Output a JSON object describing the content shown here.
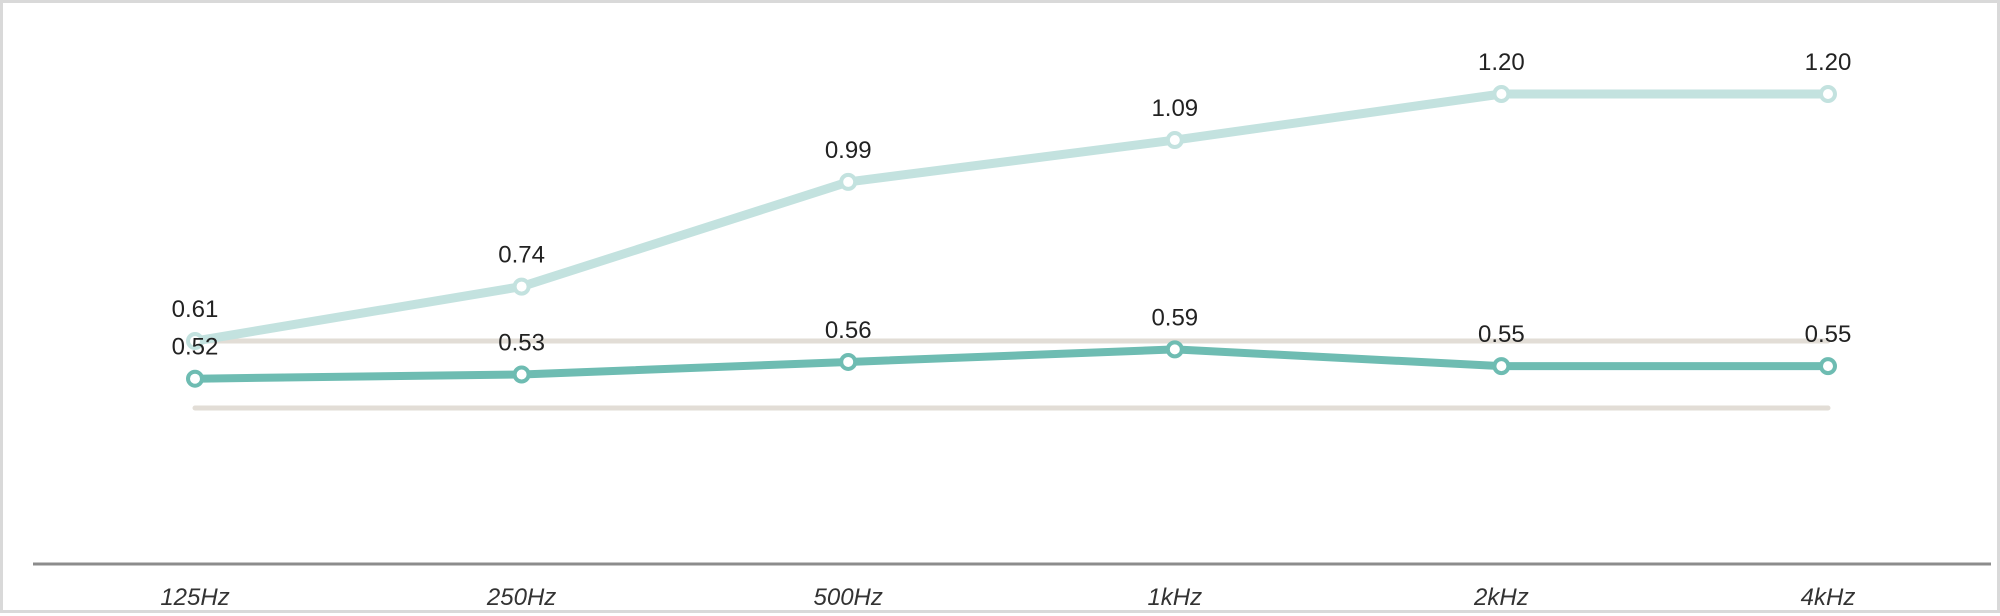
{
  "chart_data": {
    "type": "line",
    "title": "",
    "xlabel": "",
    "ylabel": "",
    "categories": [
      "125Hz",
      "250Hz",
      "500Hz",
      "1kHz",
      "2kHz",
      "4kHz"
    ],
    "ylim": [
      -0.1,
      1.3
    ],
    "grid": false,
    "reference_lines": [
      0.61,
      0.45
    ],
    "series": [
      {
        "values": [
          0.61,
          0.74,
          0.99,
          1.09,
          1.2,
          1.2
        ],
        "labels": [
          "0.61",
          "0.74",
          "0.99",
          "1.09",
          "1.20",
          "1.20"
        ],
        "color": "#c3e2df"
      },
      {
        "values": [
          0.52,
          0.53,
          0.56,
          0.59,
          0.55,
          0.55
        ],
        "labels": [
          "0.52",
          "0.53",
          "0.56",
          "0.59",
          "0.55",
          "0.55"
        ],
        "color": "#6ebcb2"
      }
    ],
    "reference_color": "#e2ddd6",
    "axis_color": "#8c8c8c"
  }
}
